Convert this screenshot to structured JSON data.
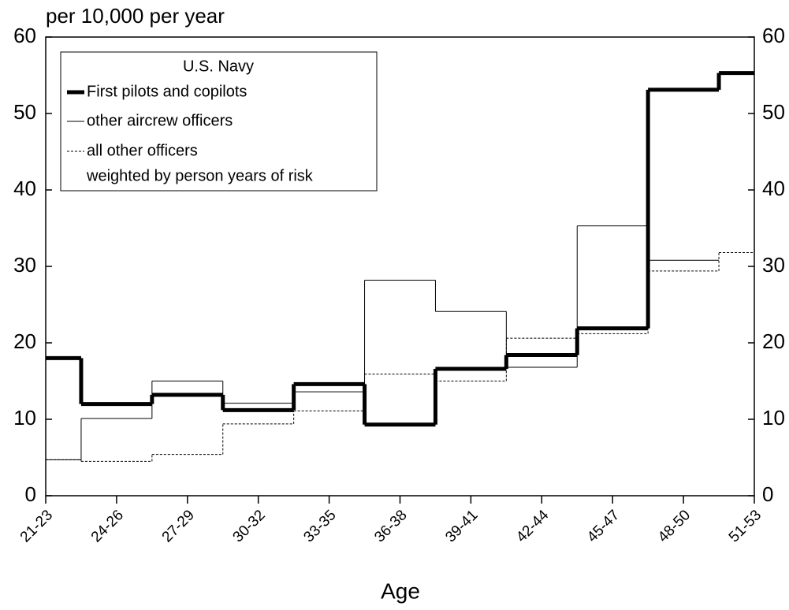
{
  "chart_data": {
    "type": "step",
    "ylabel": "per 10,000 per year",
    "xlabel": "Age",
    "categories": [
      "21-23",
      "24-26",
      "27-29",
      "30-32",
      "33-35",
      "36-38",
      "39-41",
      "42-44",
      "45-47",
      "48-50",
      "51-53"
    ],
    "series": [
      {
        "name": "First pilots and copilots",
        "color": "#000000",
        "style": "thick",
        "values": [
          18,
          12,
          13.2,
          11.2,
          14.6,
          9.3,
          16.6,
          18.4,
          21.9,
          53.1,
          55.3
        ]
      },
      {
        "name": "other aircrew officers",
        "color": "#000000",
        "style": "thin",
        "values": [
          4.7,
          10.1,
          15.0,
          12.1,
          13.6,
          28.2,
          24.1,
          16.8,
          35.3,
          30.8,
          null
        ]
      },
      {
        "name": "all other officers",
        "color": "#000000",
        "style": "dashed",
        "values": [
          4.7,
          4.5,
          5.4,
          9.4,
          11.1,
          15.9,
          15.0,
          20.6,
          21.2,
          29.4,
          31.8
        ]
      }
    ],
    "legend_title": "U.S. Navy",
    "legend_note": "weighted by person years of risk",
    "legend": "upper left",
    "ylim": [
      0,
      60
    ],
    "yticks": [
      0,
      10,
      20,
      30,
      40,
      50,
      60
    ],
    "y2lim": [
      0,
      60
    ],
    "y2ticks": [
      0,
      10,
      20,
      30,
      40,
      50,
      60
    ]
  }
}
